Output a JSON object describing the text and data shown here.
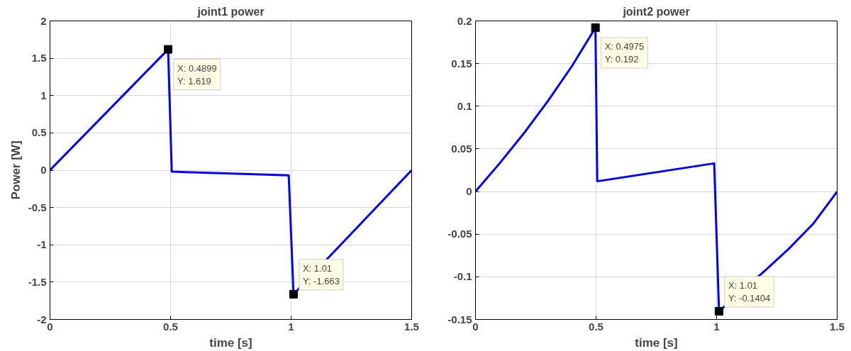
{
  "chart_data": [
    {
      "type": "line",
      "title": "joint1 power",
      "xlabel": "time [s]",
      "ylabel": "Power [W]",
      "series": [
        {
          "color": "#0000ff",
          "x": [
            0,
            0.4899,
            0.505,
            0.99,
            1.01,
            1.5
          ],
          "values": [
            0,
            1.619,
            -0.02,
            -0.07,
            -1.663,
            0
          ]
        }
      ],
      "xlim": [
        0,
        1.5
      ],
      "ylim": [
        -2,
        2
      ],
      "xticks": [
        0,
        0.5,
        1,
        1.5
      ],
      "yticks": [
        -2,
        -1.5,
        -1,
        -0.5,
        0,
        0.5,
        1,
        1.5,
        2
      ],
      "grid": true,
      "annotations": [
        {
          "text": "X: 0.4899\nY: 1.619",
          "x": 0.4899,
          "y": 1.619
        },
        {
          "text": "X: 1.01\nY: -1.663",
          "x": 1.01,
          "y": -1.663
        }
      ]
    },
    {
      "type": "line",
      "title": "joint2 power",
      "xlabel": "time [s]",
      "series": [
        {
          "color": "#0000ff",
          "x": [
            0,
            0.1,
            0.2,
            0.3,
            0.4,
            0.4975,
            0.505,
            0.99,
            1.01,
            1.2,
            1.3,
            1.4,
            1.5
          ],
          "values": [
            0,
            0.033,
            0.068,
            0.106,
            0.147,
            0.192,
            0.012,
            0.033,
            -0.1404,
            -0.093,
            -0.067,
            -0.038,
            0
          ]
        }
      ],
      "xlim": [
        0,
        1.5
      ],
      "ylim": [
        -0.15,
        0.2
      ],
      "xticks": [
        0,
        0.5,
        1,
        1.5
      ],
      "yticks": [
        -0.15,
        -0.1,
        -0.05,
        0,
        0.05,
        0.1,
        0.15,
        0.2
      ],
      "grid": true,
      "annotations": [
        {
          "text": "X: 0.4975\nY: 0.192",
          "x": 0.4975,
          "y": 0.192
        },
        {
          "text": "X: 1.01\nY: -0.1404",
          "x": 1.01,
          "y": -0.1404
        }
      ]
    }
  ]
}
